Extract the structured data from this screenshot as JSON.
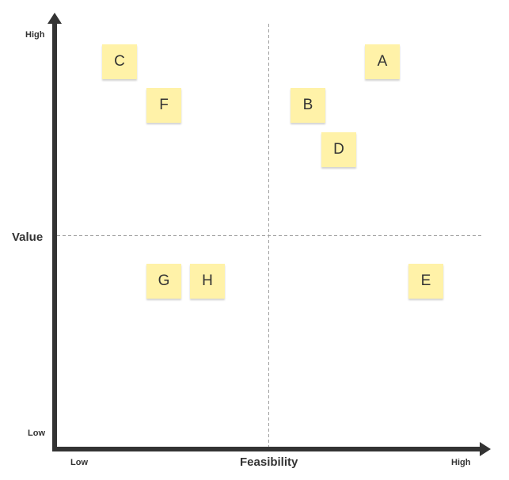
{
  "axes": {
    "y_title": "Value",
    "y_high": "High",
    "y_low": "Low",
    "x_title": "Feasibility",
    "x_low": "Low",
    "x_high": "High"
  },
  "colors": {
    "axis": "#333333",
    "note_fill": "#fff2a8",
    "divider": "#a0a0a0"
  },
  "notes": [
    {
      "label": "A",
      "feasibility": "high",
      "value": "high"
    },
    {
      "label": "B",
      "feasibility": "high",
      "value": "high"
    },
    {
      "label": "C",
      "feasibility": "low",
      "value": "high"
    },
    {
      "label": "D",
      "feasibility": "high",
      "value": "high"
    },
    {
      "label": "E",
      "feasibility": "high",
      "value": "low"
    },
    {
      "label": "F",
      "feasibility": "low",
      "value": "high"
    },
    {
      "label": "G",
      "feasibility": "low",
      "value": "low"
    },
    {
      "label": "H",
      "feasibility": "low",
      "value": "low"
    }
  ]
}
